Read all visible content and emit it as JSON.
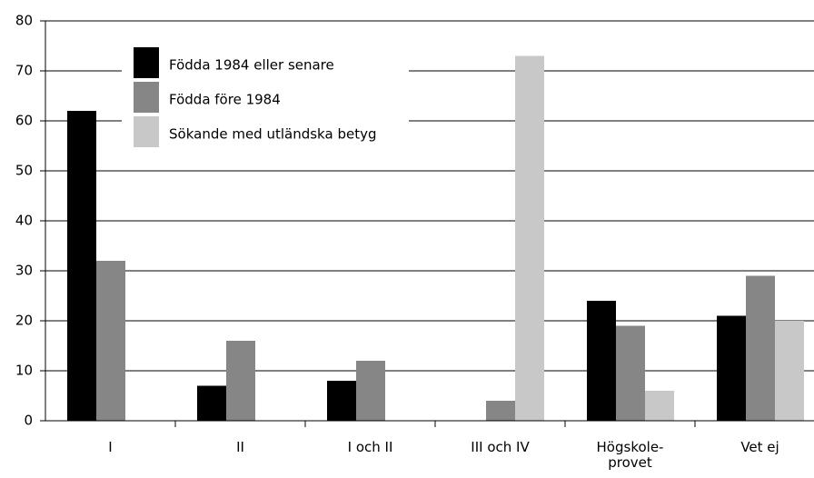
{
  "chart_data": {
    "type": "bar",
    "categories": [
      "I",
      "II",
      "I och II",
      "III och IV",
      "Högskole-\nprovet",
      "Vet ej"
    ],
    "series": [
      {
        "name": "Födda 1984 eller senare",
        "color": "#000000",
        "values": [
          62,
          7,
          8,
          null,
          24,
          21
        ]
      },
      {
        "name": "Födda före 1984",
        "color": "#868686",
        "values": [
          32,
          16,
          12,
          4,
          19,
          29
        ]
      },
      {
        "name": "Sökande med utländska betyg",
        "color": "#c8c8c8",
        "values": [
          null,
          null,
          null,
          73,
          6,
          20
        ]
      }
    ],
    "ylim": [
      0,
      80
    ],
    "yticks": [
      0,
      10,
      20,
      30,
      40,
      50,
      60,
      70,
      80
    ],
    "grid": true,
    "legend": "top-left"
  }
}
